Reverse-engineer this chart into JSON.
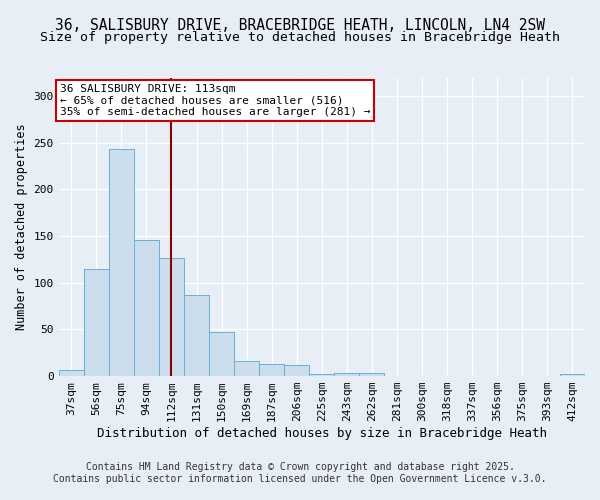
{
  "categories": [
    "37sqm",
    "56sqm",
    "75sqm",
    "94sqm",
    "112sqm",
    "131sqm",
    "150sqm",
    "169sqm",
    "187sqm",
    "206sqm",
    "225sqm",
    "243sqm",
    "262sqm",
    "281sqm",
    "300sqm",
    "318sqm",
    "337sqm",
    "356sqm",
    "375sqm",
    "393sqm",
    "412sqm"
  ],
  "values": [
    7,
    115,
    243,
    146,
    127,
    87,
    47,
    16,
    13,
    12,
    2,
    3,
    3,
    0,
    0,
    0,
    0,
    0,
    0,
    0,
    2
  ],
  "bar_color": "#ccdded",
  "bar_edge_color": "#6aafd6",
  "background_color": "#e8eef5",
  "grid_color": "#ffffff",
  "title_line1": "36, SALISBURY DRIVE, BRACEBRIDGE HEATH, LINCOLN, LN4 2SW",
  "title_line2": "Size of property relative to detached houses in Bracebridge Heath",
  "xlabel": "Distribution of detached houses by size in Bracebridge Heath",
  "ylabel": "Number of detached properties",
  "ylim": [
    0,
    320
  ],
  "yticks": [
    0,
    50,
    100,
    150,
    200,
    250,
    300
  ],
  "property_size_index": 4,
  "vline_color": "#8b0000",
  "annotation_text": "36 SALISBURY DRIVE: 113sqm\n← 65% of detached houses are smaller (516)\n35% of semi-detached houses are larger (281) →",
  "annotation_box_color": "#ffffff",
  "annotation_edge_color": "#cc0000",
  "footer_line1": "Contains HM Land Registry data © Crown copyright and database right 2025.",
  "footer_line2": "Contains public sector information licensed under the Open Government Licence v.3.0.",
  "title_fontsize": 10.5,
  "subtitle_fontsize": 9.5,
  "xlabel_fontsize": 9,
  "ylabel_fontsize": 8.5,
  "tick_fontsize": 8,
  "annotation_fontsize": 8,
  "footer_fontsize": 7
}
